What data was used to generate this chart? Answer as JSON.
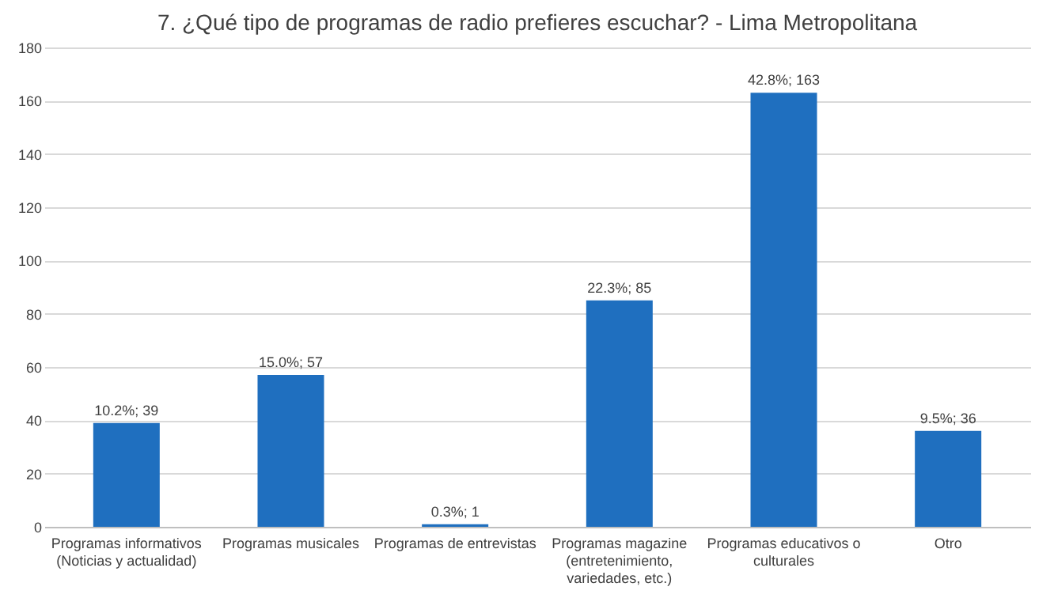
{
  "chart_data": {
    "type": "bar",
    "title": "7. ¿Qué tipo de programas de radio prefieres escuchar? - Lima Metropolitana",
    "categories": [
      "Programas informativos\n(Noticias y actualidad)",
      "Programas musicales",
      "Programas de entrevistas",
      "Programas magazine\n(entretenimiento,\nvariedades, etc.)",
      "Programas educativos o\nculturales",
      "Otro"
    ],
    "values": [
      39,
      57,
      1,
      85,
      163,
      36
    ],
    "value_labels": [
      "10.2%; 39",
      "15.0%; 57",
      "0.3%; 1",
      "22.3%; 85",
      "42.8%; 163",
      "9.5%; 36"
    ],
    "color": "#1f6fbf",
    "ylim": [
      0,
      180
    ],
    "yticks": [
      0,
      20,
      40,
      60,
      80,
      100,
      120,
      140,
      160,
      180
    ],
    "grid": "y"
  }
}
